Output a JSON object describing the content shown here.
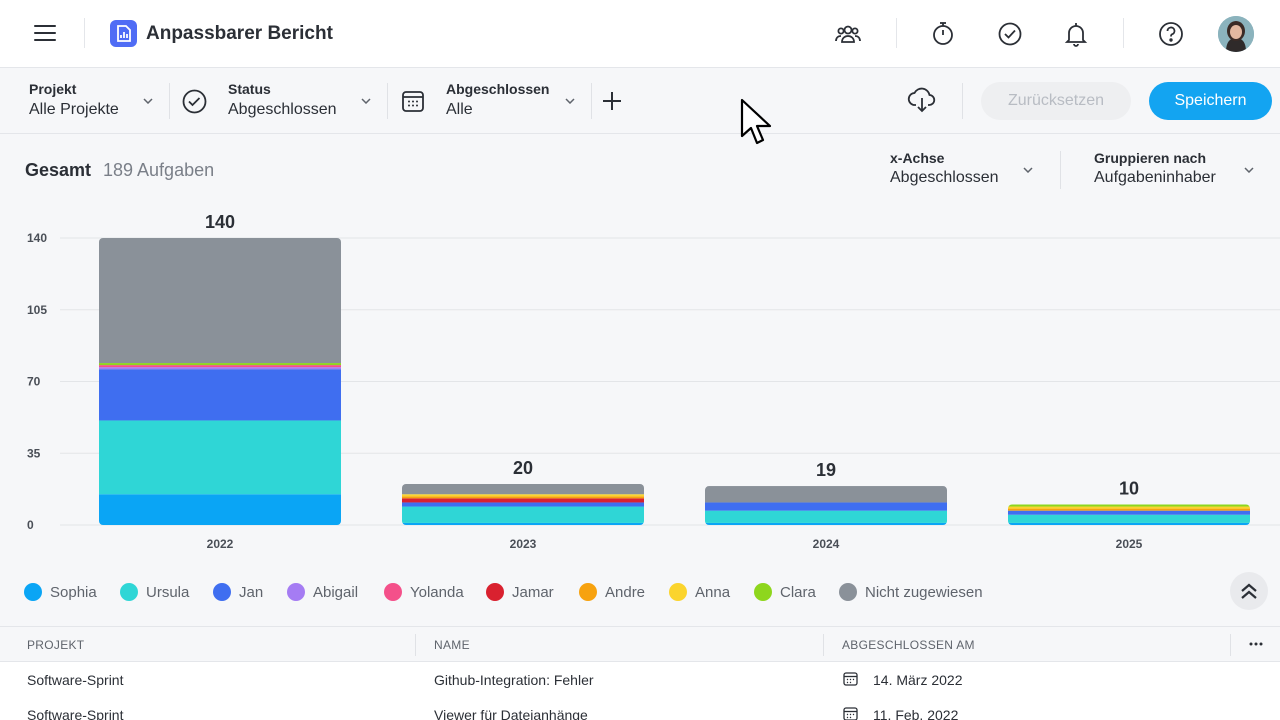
{
  "header": {
    "title": "Anpassbarer Bericht",
    "icons": [
      "team-icon",
      "timer-icon",
      "check-circle-icon",
      "bell-icon",
      "help-icon",
      "avatar"
    ]
  },
  "filters": [
    {
      "label": "Projekt",
      "value": "Alle Projekte"
    },
    {
      "label": "Status",
      "value": "Abgeschlossen"
    },
    {
      "label": "Abgeschlossen",
      "value": "Alle"
    }
  ],
  "toolbar": {
    "reset_label": "Zurücksetzen",
    "save_label": "Speichern"
  },
  "summary": {
    "total_label": "Gesamt",
    "total_count": "189 Aufgaben"
  },
  "axis": {
    "x_label": "x-Achse",
    "x_value": "Abgeschlossen",
    "group_label": "Gruppieren nach",
    "group_value": "Aufgabeninhaber"
  },
  "colors": {
    "accent": "#13a4f1",
    "app_icon": "#4f6cf5"
  },
  "chart_data": {
    "type": "bar",
    "stacked": true,
    "categories": [
      "2022",
      "2023",
      "2024",
      "2025"
    ],
    "totals": [
      140,
      20,
      19,
      10
    ],
    "ylim": [
      0,
      140
    ],
    "yticks": [
      0,
      35,
      70,
      105,
      140
    ],
    "grid": true,
    "legend_position": "bottom",
    "series": [
      {
        "name": "Sophia",
        "color": "#0aa5f5",
        "values": [
          15,
          1,
          1,
          1
        ]
      },
      {
        "name": "Ursula",
        "color": "#2fd6d6",
        "values": [
          36,
          8,
          6,
          4
        ]
      },
      {
        "name": "Jan",
        "color": "#3f6ef0",
        "values": [
          25,
          2,
          4,
          2
        ]
      },
      {
        "name": "Abigail",
        "color": "#a57cf3",
        "values": [
          1,
          0,
          0,
          0
        ]
      },
      {
        "name": "Yolanda",
        "color": "#f4508a",
        "values": [
          1,
          0,
          0,
          0
        ]
      },
      {
        "name": "Jamar",
        "color": "#d9212f",
        "values": [
          0,
          2,
          0,
          0
        ]
      },
      {
        "name": "Andre",
        "color": "#f7a20f",
        "values": [
          0,
          1,
          0,
          1
        ]
      },
      {
        "name": "Anna",
        "color": "#fbd42d",
        "values": [
          0,
          1,
          0,
          1
        ]
      },
      {
        "name": "Clara",
        "color": "#8ed61d",
        "values": [
          1,
          0,
          0,
          1
        ]
      },
      {
        "name": "Nicht zugewiesen",
        "color": "#8a9199",
        "values": [
          61,
          5,
          8,
          0
        ]
      }
    ]
  },
  "table": {
    "headers": [
      "PROJEKT",
      "NAME",
      "ABGESCHLOSSEN AM"
    ],
    "rows": [
      [
        "Software-Sprint",
        "Github-Integration: Fehler",
        "14. März 2022"
      ],
      [
        "Software-Sprint",
        "Viewer für Dateianhänge",
        "11. Feb. 2022"
      ]
    ]
  }
}
